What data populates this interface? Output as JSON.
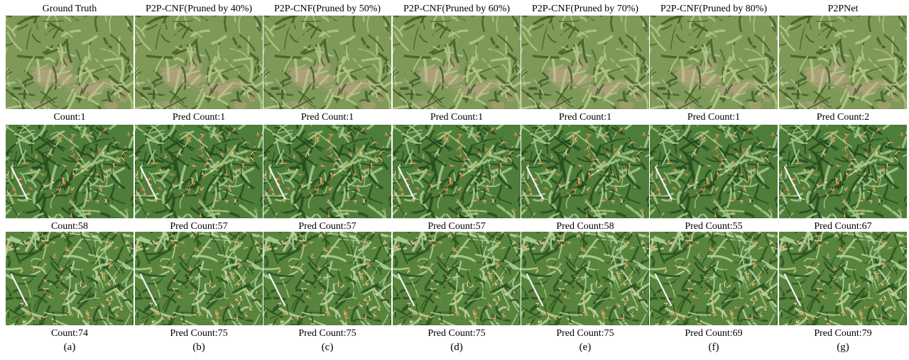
{
  "columns": [
    {
      "title": "Ground Truth",
      "counts": [
        "Count:1",
        "Count:58",
        "Count:74"
      ],
      "label": "(a)"
    },
    {
      "title": "P2P-CNF(Pruned by 40%)",
      "counts": [
        "Pred Count:1",
        "Pred Count:57",
        "Pred Count:75"
      ],
      "label": "(b)"
    },
    {
      "title": "P2P-CNF(Pruned by 50%)",
      "counts": [
        "Pred Count:1",
        "Pred Count:57",
        "Pred Count:75"
      ],
      "label": "(c)"
    },
    {
      "title": "P2P-CNF(Pruned by 60%)",
      "counts": [
        "Pred Count:1",
        "Pred Count:57",
        "Pred Count:75"
      ],
      "label": "(d)"
    },
    {
      "title": "P2P-CNF(Pruned by 70%)",
      "counts": [
        "Pred Count:1",
        "Pred Count:58",
        "Pred Count:75"
      ],
      "label": "(e)"
    },
    {
      "title": "P2P-CNF(Pruned by 80%)",
      "counts": [
        "Pred Count:1",
        "Pred Count:55",
        "Pred Count:69"
      ],
      "label": "(f)"
    },
    {
      "title": "P2PNet",
      "counts": [
        "Pred Count:2",
        "Pred Count:67",
        "Pred Count:79"
      ],
      "label": "(g)"
    }
  ],
  "photo_rows": [
    {
      "scene": "young-maize-field-with-soil",
      "colors": {
        "base": "#7f9a58",
        "leaf_dark": "#3f5f2a",
        "leaf_light": "#b4c88a",
        "soil": "#b8a184"
      }
    },
    {
      "scene": "maize-canopy-with-tassels-and-marker-pole",
      "colors": {
        "base": "#4f7d3a",
        "leaf_dark": "#244a1e",
        "leaf_light": "#a8c98d",
        "tassel": "#d98a4a"
      }
    },
    {
      "scene": "dense-maize-canopy-with-tassels-and-marker-pole",
      "colors": {
        "base": "#58843e",
        "leaf_dark": "#2a5222",
        "leaf_light": "#b6d29a",
        "tassel": "#e0a060"
      }
    }
  ]
}
